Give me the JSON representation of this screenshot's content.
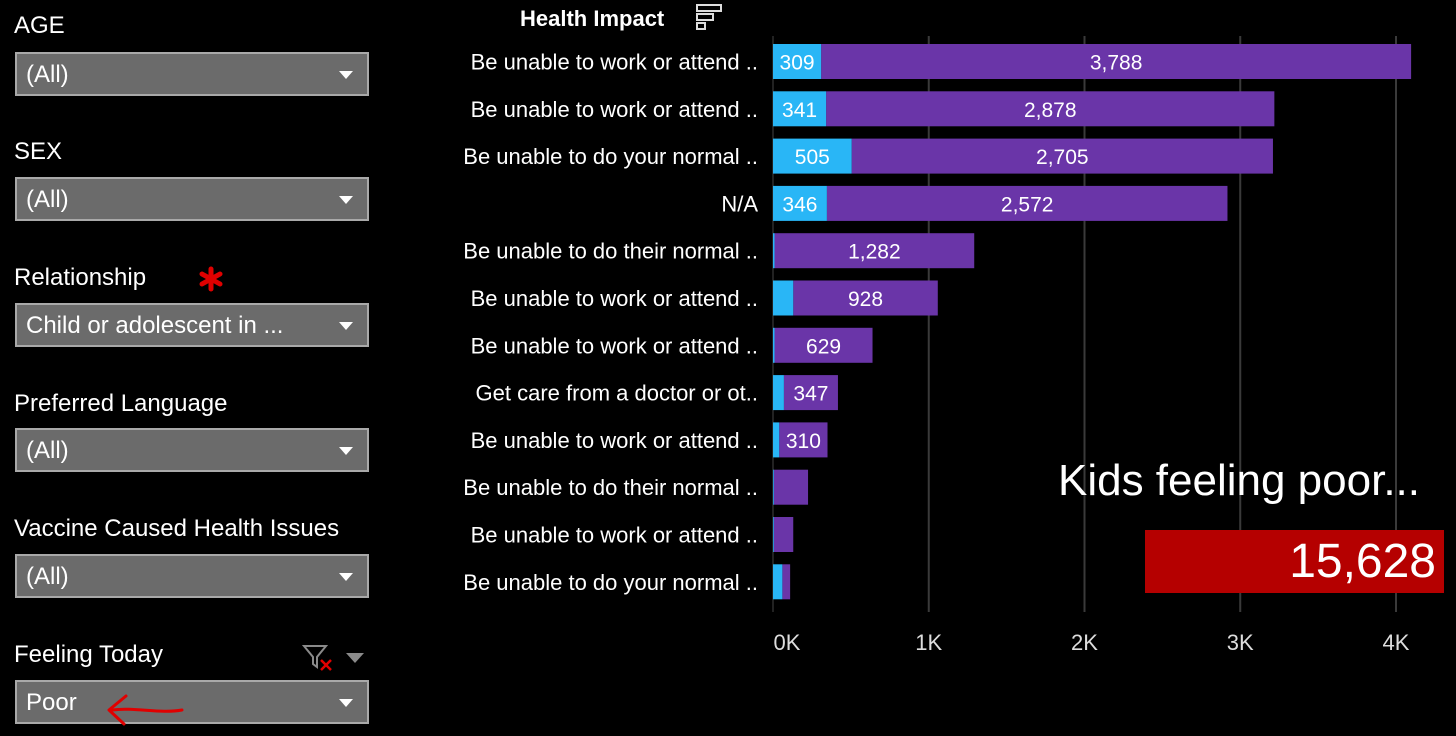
{
  "filters": [
    {
      "label": "AGE",
      "value": "(All)"
    },
    {
      "label": "SEX",
      "value": "(All)"
    },
    {
      "label": "Relationship",
      "value": "Child or adolescent in ..."
    },
    {
      "label": "Preferred Language",
      "value": "(All)"
    },
    {
      "label": "Vaccine Caused Health Issues",
      "value": "(All)"
    },
    {
      "label": "Feeling Today",
      "value": "Poor"
    }
  ],
  "kpi": {
    "caption": "Kids feeling poor...",
    "value": "15,628",
    "color": "#b50000"
  },
  "colors": {
    "series_a": "#29b6f6",
    "series_b": "#6a35a8",
    "background": "#000000",
    "annotation_red": "#e00000"
  },
  "icons": {
    "relationship_marker": "red-asterisk-icon",
    "feeling_clear": "filter-clear-icon",
    "sort": "sort-icon",
    "annotation": "red-arrow-icon"
  },
  "chart_data": {
    "type": "bar",
    "orientation": "horizontal",
    "stacked": true,
    "title": "Health Impact",
    "categories": [
      "Be unable to work or attend ..",
      "Be unable to work or attend ..",
      "Be unable to do your normal ..",
      "N/A",
      "Be unable to do their normal ..",
      "Be unable to work or attend ..",
      "Be unable to work or attend ..",
      "Get care from a doctor or ot..",
      "Be unable to work or attend ..",
      "Be unable to do their normal ..",
      "Be unable to work or attend ..",
      "Be unable to do your normal .."
    ],
    "series": [
      {
        "color": "#29b6f6",
        "values": [
          309,
          341,
          505,
          346,
          10,
          130,
          10,
          70,
          40,
          5,
          5,
          60
        ],
        "labels": [
          "309",
          "341",
          "505",
          "346",
          "",
          "",
          "",
          "",
          "",
          "",
          "",
          ""
        ]
      },
      {
        "color": "#6a35a8",
        "values": [
          3788,
          2878,
          2705,
          2572,
          1282,
          928,
          629,
          347,
          310,
          220,
          125,
          50
        ],
        "labels": [
          "3,788",
          "2,878",
          "2,705",
          "2,572",
          "1,282",
          "928",
          "629",
          "347",
          "310",
          "",
          "",
          ""
        ]
      }
    ],
    "xlim": [
      0,
      4250
    ],
    "xticks": [
      0,
      1000,
      2000,
      3000,
      4000
    ],
    "xtick_labels": [
      "0K",
      "1K",
      "2K",
      "3K",
      "4K"
    ],
    "grid": "vertical"
  }
}
